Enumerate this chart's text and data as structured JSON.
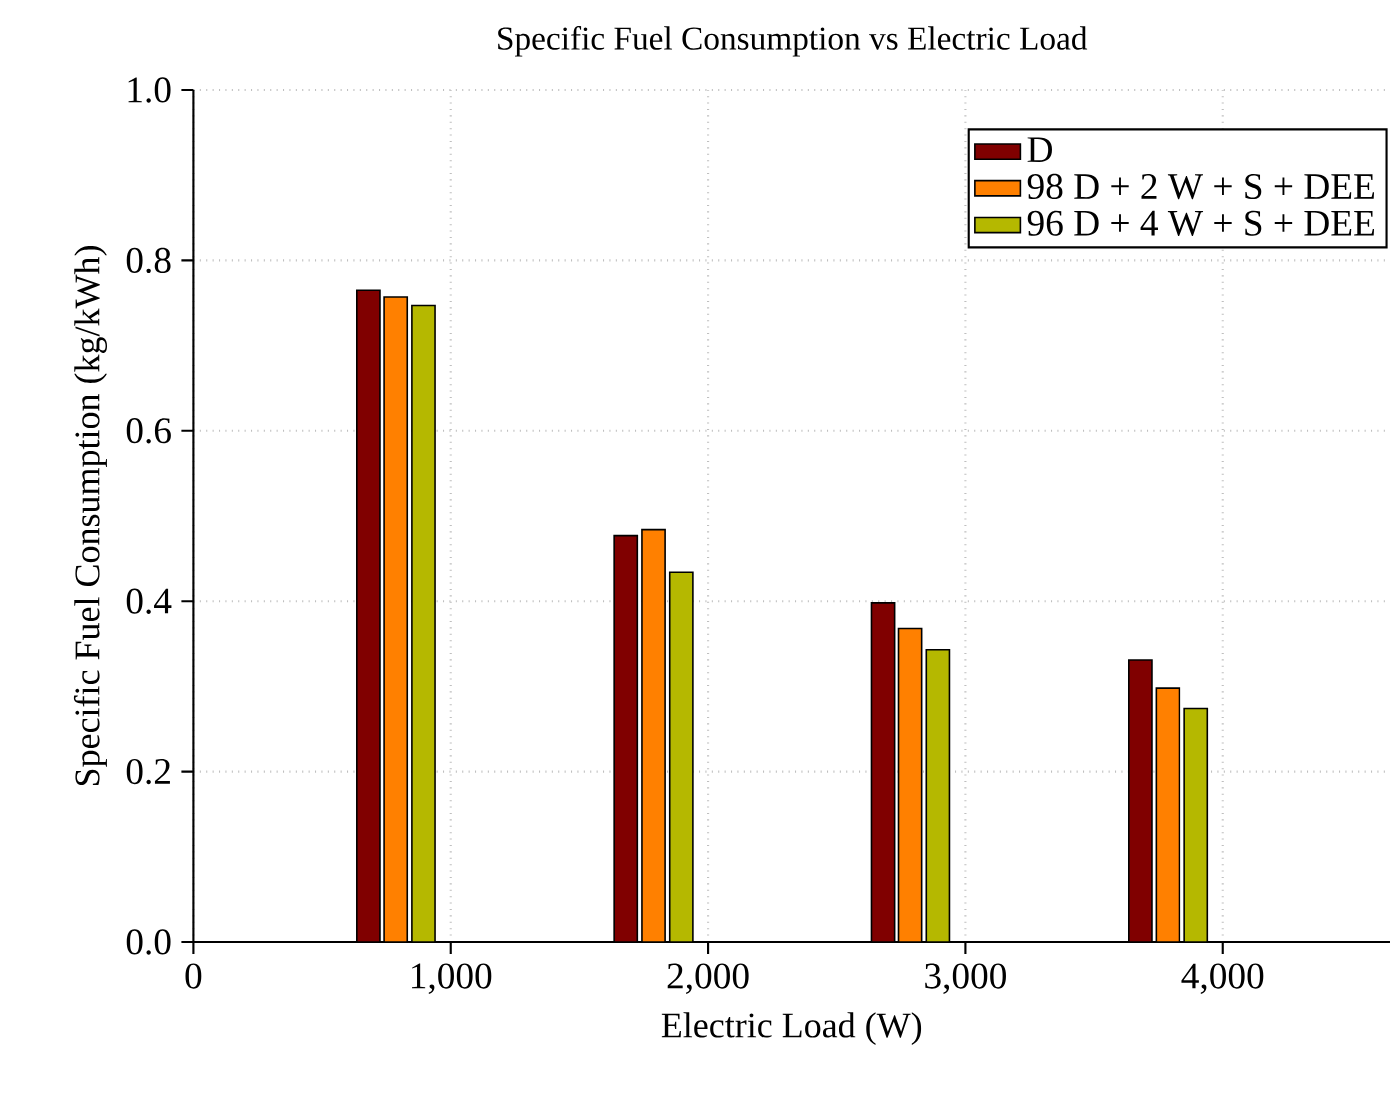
{
  "chart_data": {
    "type": "bar",
    "title": "Specific Fuel Consumption vs Electric Load",
    "xlabel": "Electric Load (W)",
    "ylabel": "Specific Fuel Consumption (kg/kWh)",
    "series": [
      {
        "name": "D",
        "color": "#800000",
        "x": [
          680,
          1680,
          2680,
          3680
        ],
        "values": [
          0.765,
          0.477,
          0.398,
          0.331
        ]
      },
      {
        "name": "98 D + 2 W + S + DEE",
        "color": "#ff8000",
        "x": [
          786,
          1788,
          2785,
          3787
        ],
        "values": [
          0.757,
          0.484,
          0.368,
          0.298
        ]
      },
      {
        "name": "96 D + 4 W + S + DEE",
        "color": "#b5b800",
        "x": [
          894,
          1896,
          2893,
          3895
        ],
        "values": [
          0.747,
          0.434,
          0.343,
          0.274
        ]
      }
    ],
    "xlim": [
      0,
      4650
    ],
    "xticks": [
      0,
      {
        "value": 1000,
        "label": "1,000"
      },
      {
        "value": 2000,
        "label": "2,000"
      },
      {
        "value": 3000,
        "label": "3,000"
      },
      {
        "value": 4000,
        "label": "4,000"
      }
    ],
    "ylim": [
      0,
      1.0
    ],
    "yticks": [
      {
        "value": 0,
        "label": "0.0"
      },
      {
        "value": 0.2,
        "label": "0.2"
      },
      {
        "value": 0.4,
        "label": "0.4"
      },
      {
        "value": 0.6,
        "label": "0.6"
      },
      {
        "value": 0.8,
        "label": "0.8"
      },
      {
        "value": 1.0,
        "label": "1.0"
      }
    ],
    "grid": true,
    "legend": "top right"
  }
}
